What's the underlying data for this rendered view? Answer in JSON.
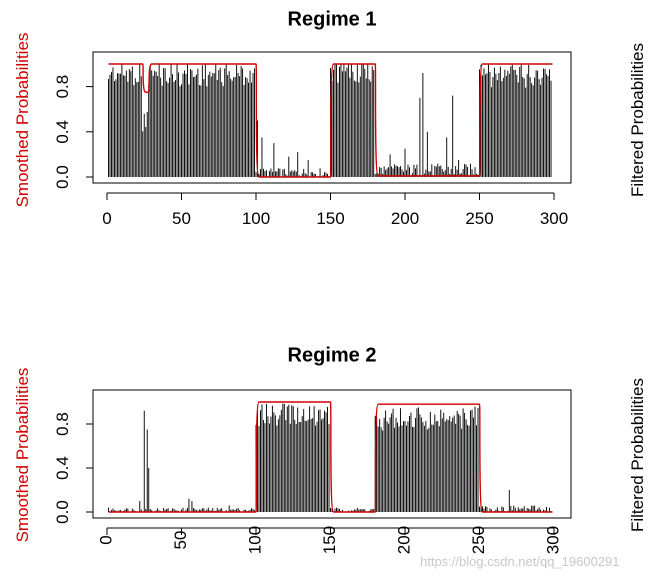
{
  "chart_data": [
    {
      "type": "bar",
      "title": "Regime 1",
      "ylabel_left": "Smoothed Probabilities",
      "ylabel_right": "Filtered Probabilities",
      "xlim": [
        0,
        300
      ],
      "ylim": [
        0,
        1
      ],
      "xticks": [
        0,
        50,
        100,
        150,
        200,
        250,
        300
      ],
      "yticks": [
        "0.0",
        "0.4",
        "0.8"
      ],
      "bar_series_name": "Filtered Probabilities",
      "line_series_name": "Smoothed Probabilities",
      "bar_color": "#000000",
      "line_color": "#d00000",
      "segments": [
        {
          "x": [
            1,
            24
          ],
          "bars": 0.97,
          "line": 1.0
        },
        {
          "x": [
            24,
            28
          ],
          "bars": 0.55,
          "line": 0.75
        },
        {
          "x": [
            28,
            100
          ],
          "bars": 0.96,
          "line": 1.0
        },
        {
          "x": [
            100,
            150
          ],
          "bars": 0.04,
          "line": 0.0
        },
        {
          "x": [
            150,
            180
          ],
          "bars": 0.99,
          "line": 1.0
        },
        {
          "x": [
            180,
            250
          ],
          "bars": 0.06,
          "line": 0.01
        },
        {
          "x": [
            250,
            299
          ],
          "bars": 0.95,
          "line": 1.0
        }
      ],
      "peaks": [
        {
          "x": 101,
          "y": 0.5
        },
        {
          "x": 104,
          "y": 0.35
        },
        {
          "x": 112,
          "y": 0.3
        },
        {
          "x": 122,
          "y": 0.18
        },
        {
          "x": 128,
          "y": 0.22
        },
        {
          "x": 135,
          "y": 0.15
        },
        {
          "x": 190,
          "y": 0.2
        },
        {
          "x": 200,
          "y": 0.25
        },
        {
          "x": 210,
          "y": 0.7
        },
        {
          "x": 212,
          "y": 0.92
        },
        {
          "x": 215,
          "y": 0.4
        },
        {
          "x": 228,
          "y": 0.35
        },
        {
          "x": 232,
          "y": 0.72
        },
        {
          "x": 236,
          "y": 0.15
        }
      ]
    },
    {
      "type": "bar",
      "title": "Regime 2",
      "ylabel_left": "Smoothed Probabilities",
      "ylabel_right": "Filtered Probabilities",
      "xlim": [
        0,
        300
      ],
      "ylim": [
        0,
        1
      ],
      "xticks": [
        0,
        50,
        100,
        150,
        200,
        250,
        300
      ],
      "yticks": [
        "0.0",
        "0.4",
        "0.8"
      ],
      "bar_series_name": "Filtered Probabilities",
      "line_series_name": "Smoothed Probabilities",
      "bar_color": "#000000",
      "line_color": "#d00000",
      "segments": [
        {
          "x": [
            1,
            100
          ],
          "bars": 0.02,
          "line": 0.0
        },
        {
          "x": [
            100,
            150
          ],
          "bars": 0.93,
          "line": 1.0
        },
        {
          "x": [
            150,
            180
          ],
          "bars": 0.02,
          "line": 0.0
        },
        {
          "x": [
            180,
            250
          ],
          "bars": 0.9,
          "line": 0.98
        },
        {
          "x": [
            250,
            299
          ],
          "bars": 0.03,
          "line": 0.0
        }
      ],
      "peaks": [
        {
          "x": 22,
          "y": 0.1
        },
        {
          "x": 25,
          "y": 0.92
        },
        {
          "x": 27,
          "y": 0.75
        },
        {
          "x": 28,
          "y": 0.4
        },
        {
          "x": 55,
          "y": 0.12
        },
        {
          "x": 57,
          "y": 0.1
        },
        {
          "x": 82,
          "y": 0.06
        },
        {
          "x": 270,
          "y": 0.2
        }
      ]
    }
  ],
  "watermark": "https://blog.csdn.net/qq_19600291"
}
